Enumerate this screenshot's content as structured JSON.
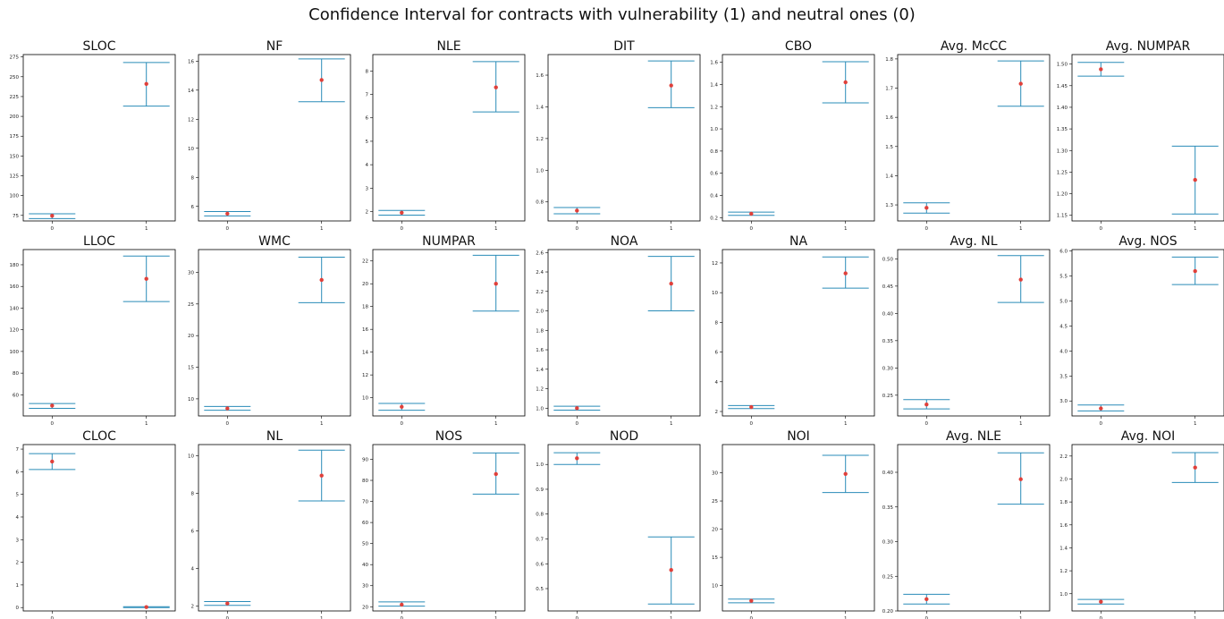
{
  "figure": {
    "title": "Confidence Interval for contracts with vulnerability (1) and neutral ones (0)"
  },
  "colors": {
    "ci": "#2a8cb8",
    "mean": "#e0403a",
    "axis": "#000000"
  },
  "chart_data": [
    {
      "type": "errorbar",
      "title": "SLOC",
      "categories": [
        "0",
        "1"
      ],
      "mean": [
        74.5,
        241
      ],
      "lower": [
        71,
        213
      ],
      "upper": [
        77,
        268
      ],
      "yticks": [
        75,
        100,
        125,
        150,
        175,
        200,
        225,
        250,
        275
      ],
      "ylim": [
        68,
        278
      ]
    },
    {
      "type": "errorbar",
      "title": "NF",
      "categories": [
        "0",
        "1"
      ],
      "mean": [
        5.5,
        14.7
      ],
      "lower": [
        5.35,
        13.2
      ],
      "upper": [
        5.65,
        16.15
      ],
      "yticks": [
        6,
        8,
        10,
        12,
        14,
        16
      ],
      "ylim": [
        5.0,
        16.45
      ]
    },
    {
      "type": "errorbar",
      "title": "NLE",
      "categories": [
        "0",
        "1"
      ],
      "mean": [
        1.95,
        7.3
      ],
      "lower": [
        1.85,
        6.25
      ],
      "upper": [
        2.05,
        8.4
      ],
      "yticks": [
        2,
        3,
        4,
        5,
        6,
        7,
        8
      ],
      "ylim": [
        1.6,
        8.7
      ]
    },
    {
      "type": "errorbar",
      "title": "DIT",
      "categories": [
        "0",
        "1"
      ],
      "mean": [
        0.745,
        1.535
      ],
      "lower": [
        0.725,
        1.395
      ],
      "upper": [
        0.765,
        1.69
      ],
      "yticks": [
        0.8,
        1.0,
        1.2,
        1.4,
        1.6
      ],
      "ylim": [
        0.68,
        1.73
      ]
    },
    {
      "type": "errorbar",
      "title": "CBO",
      "categories": [
        "0",
        "1"
      ],
      "mean": [
        0.235,
        1.42
      ],
      "lower": [
        0.22,
        1.235
      ],
      "upper": [
        0.25,
        1.605
      ],
      "yticks": [
        0.2,
        0.4,
        0.6,
        0.8,
        1.0,
        1.2,
        1.4,
        1.6
      ],
      "ylim": [
        0.17,
        1.67
      ]
    },
    {
      "type": "errorbar",
      "title": "Avg. McCC",
      "categories": [
        "0",
        "1"
      ],
      "mean": [
        1.29,
        1.715
      ],
      "lower": [
        1.272,
        1.638
      ],
      "upper": [
        1.307,
        1.793
      ],
      "yticks": [
        1.3,
        1.4,
        1.5,
        1.6,
        1.7,
        1.8
      ],
      "ylim": [
        1.245,
        1.815
      ]
    },
    {
      "type": "errorbar",
      "title": "Avg. NUMPAR",
      "categories": [
        "0",
        "1"
      ],
      "mean": [
        1.488,
        1.232
      ],
      "lower": [
        1.472,
        1.153
      ],
      "upper": [
        1.504,
        1.31
      ],
      "yticks": [
        1.15,
        1.2,
        1.25,
        1.3,
        1.35,
        1.4,
        1.45,
        1.5
      ],
      "ylim": [
        1.137,
        1.522
      ]
    },
    {
      "type": "errorbar",
      "title": "LLOC",
      "categories": [
        "0",
        "1"
      ],
      "mean": [
        50,
        167
      ],
      "lower": [
        47.5,
        146
      ],
      "upper": [
        52,
        188
      ],
      "yticks": [
        60,
        80,
        100,
        120,
        140,
        160,
        180
      ],
      "ylim": [
        40.5,
        194
      ]
    },
    {
      "type": "errorbar",
      "title": "WMC",
      "categories": [
        "0",
        "1"
      ],
      "mean": [
        8.5,
        28.8
      ],
      "lower": [
        8.2,
        25.2
      ],
      "upper": [
        8.8,
        32.4
      ],
      "yticks": [
        10,
        15,
        20,
        25,
        30
      ],
      "ylim": [
        7.3,
        33.6
      ]
    },
    {
      "type": "errorbar",
      "title": "NUMPAR",
      "categories": [
        "0",
        "1"
      ],
      "mean": [
        9.2,
        20
      ],
      "lower": [
        8.9,
        17.6
      ],
      "upper": [
        9.5,
        22.5
      ],
      "yticks": [
        10,
        12,
        14,
        16,
        18,
        20,
        22
      ],
      "ylim": [
        8.4,
        23.0
      ]
    },
    {
      "type": "errorbar",
      "title": "NOA",
      "categories": [
        "0",
        "1"
      ],
      "mean": [
        1.0,
        2.28
      ],
      "lower": [
        0.98,
        2.0
      ],
      "upper": [
        1.02,
        2.56
      ],
      "yticks": [
        1.0,
        1.2,
        1.4,
        1.6,
        1.8,
        2.0,
        2.2,
        2.4,
        2.6
      ],
      "ylim": [
        0.92,
        2.63
      ]
    },
    {
      "type": "errorbar",
      "title": "NA",
      "categories": [
        "0",
        "1"
      ],
      "mean": [
        2.3,
        11.3
      ],
      "lower": [
        2.2,
        10.3
      ],
      "upper": [
        2.4,
        12.4
      ],
      "yticks": [
        2,
        4,
        6,
        8,
        10,
        12
      ],
      "ylim": [
        1.7,
        12.9
      ]
    },
    {
      "type": "errorbar",
      "title": "Avg. NL",
      "categories": [
        "0",
        "1"
      ],
      "mean": [
        0.233,
        0.462
      ],
      "lower": [
        0.225,
        0.42
      ],
      "upper": [
        0.242,
        0.506
      ],
      "yticks": [
        0.25,
        0.3,
        0.35,
        0.4,
        0.45,
        0.5
      ],
      "ylim": [
        0.212,
        0.517
      ]
    },
    {
      "type": "errorbar",
      "title": "Avg. NOS",
      "categories": [
        "0",
        "1"
      ],
      "mean": [
        2.85,
        5.6
      ],
      "lower": [
        2.8,
        5.33
      ],
      "upper": [
        2.92,
        5.88
      ],
      "yticks": [
        3.0,
        3.5,
        4.0,
        4.5,
        5.0,
        5.5,
        6.0
      ],
      "ylim": [
        2.7,
        6.03
      ]
    },
    {
      "type": "errorbar",
      "title": "CLOC",
      "categories": [
        "0",
        "1"
      ],
      "mean": [
        6.45,
        0.02
      ],
      "lower": [
        6.1,
        0.0
      ],
      "upper": [
        6.8,
        0.04
      ],
      "yticks": [
        0,
        1,
        2,
        3,
        4,
        5,
        6,
        7
      ],
      "ylim": [
        -0.15,
        7.2
      ]
    },
    {
      "type": "errorbar",
      "title": "NL",
      "categories": [
        "0",
        "1"
      ],
      "mean": [
        2.15,
        8.95
      ],
      "lower": [
        2.05,
        7.6
      ],
      "upper": [
        2.25,
        10.3
      ],
      "yticks": [
        2,
        4,
        6,
        8,
        10
      ],
      "ylim": [
        1.75,
        10.6
      ]
    },
    {
      "type": "errorbar",
      "title": "NOS",
      "categories": [
        "0",
        "1"
      ],
      "mean": [
        21,
        83
      ],
      "lower": [
        20.3,
        73.5
      ],
      "upper": [
        22.3,
        93
      ],
      "yticks": [
        20,
        30,
        40,
        50,
        60,
        70,
        80,
        90
      ],
      "ylim": [
        18,
        97
      ]
    },
    {
      "type": "errorbar",
      "title": "NOD",
      "categories": [
        "0",
        "1"
      ],
      "mean": [
        1.025,
        0.575
      ],
      "lower": [
        1.0,
        0.438
      ],
      "upper": [
        1.047,
        0.708
      ],
      "yticks": [
        0.5,
        0.6,
        0.7,
        0.8,
        0.9,
        1.0
      ],
      "ylim": [
        0.41,
        1.08
      ]
    },
    {
      "type": "errorbar",
      "title": "NOI",
      "categories": [
        "0",
        "1"
      ],
      "mean": [
        7.3,
        29.8
      ],
      "lower": [
        6.95,
        26.5
      ],
      "upper": [
        7.6,
        33.1
      ],
      "yticks": [
        10,
        15,
        20,
        25,
        30
      ],
      "ylim": [
        5.5,
        35
      ]
    },
    {
      "type": "errorbar",
      "title": "Avg. NLE",
      "categories": [
        "0",
        "1"
      ],
      "mean": [
        0.217,
        0.39
      ],
      "lower": [
        0.21,
        0.354
      ],
      "upper": [
        0.224,
        0.428
      ],
      "yticks": [
        0.2,
        0.25,
        0.3,
        0.35,
        0.4
      ],
      "ylim": [
        0.2,
        0.44
      ]
    },
    {
      "type": "errorbar",
      "title": "Avg. NOI",
      "categories": [
        "0",
        "1"
      ],
      "mean": [
        0.93,
        2.1
      ],
      "lower": [
        0.91,
        1.97
      ],
      "upper": [
        0.95,
        2.23
      ],
      "yticks": [
        1.0,
        1.2,
        1.4,
        1.6,
        1.8,
        2.0,
        2.2
      ],
      "ylim": [
        0.85,
        2.3
      ]
    }
  ]
}
